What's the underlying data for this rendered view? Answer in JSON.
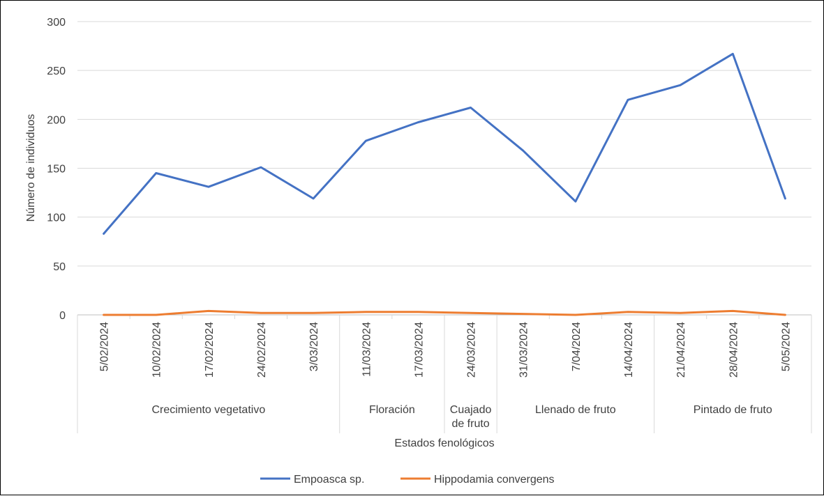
{
  "chart_data": {
    "type": "line",
    "title": "",
    "xlabel": "Estados fenológicos",
    "ylabel": "Número de individuos",
    "ylim": [
      0,
      300
    ],
    "yticks": [
      0,
      50,
      100,
      150,
      200,
      250,
      300
    ],
    "grid": true,
    "legend_position": "bottom",
    "categories": [
      "5/02/2024",
      "10/02/2024",
      "17/02/2024",
      "24/02/2024",
      "3/03/2024",
      "11/03/2024",
      "17/03/2024",
      "24/03/2024",
      "31/03/2024",
      "7/04/2024",
      "14/04/2024",
      "21/04/2024",
      "28/04/2024",
      "5/05/2024"
    ],
    "groups": [
      {
        "label": "Crecimiento vegetativo",
        "start": 0,
        "end": 4
      },
      {
        "label": "Floración",
        "start": 5,
        "end": 6
      },
      {
        "label": "Cuajado de fruto",
        "start": 7,
        "end": 7
      },
      {
        "label": "Llenado de fruto",
        "start": 8,
        "end": 10
      },
      {
        "label": "Pintado de fruto",
        "start": 11,
        "end": 13
      }
    ],
    "series": [
      {
        "name": "Empoasca sp.",
        "color": "#4472C4",
        "values": [
          83,
          145,
          131,
          151,
          119,
          178,
          197,
          212,
          168,
          116,
          220,
          235,
          267,
          119
        ]
      },
      {
        "name": "Hippodamia convergens",
        "color": "#ED7D31",
        "values": [
          0,
          0,
          4,
          2,
          2,
          3,
          3,
          2,
          1,
          0,
          3,
          2,
          4,
          0
        ]
      }
    ]
  }
}
